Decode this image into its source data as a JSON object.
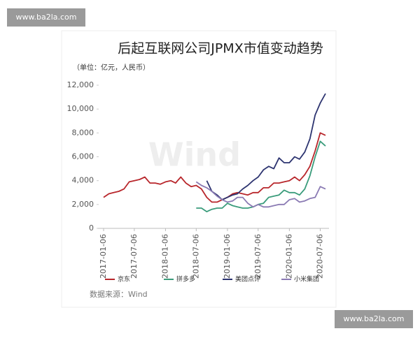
{
  "watermarks": [
    "www.ba2la.com",
    "www.ba2la.com"
  ],
  "chart_data": {
    "type": "line",
    "title": "后起互联网公司JPMX市值变动趋势",
    "subtitle": "（单位：亿元，人民币）",
    "source": "数据来源：Wind",
    "background_logo": "Wind",
    "x": [
      "2017-01-06",
      "2017-02-06",
      "2017-03-06",
      "2017-04-06",
      "2017-05-06",
      "2017-06-06",
      "2017-07-06",
      "2017-08-06",
      "2017-09-06",
      "2017-10-06",
      "2017-11-06",
      "2017-12-06",
      "2018-01-06",
      "2018-02-06",
      "2018-03-06",
      "2018-04-06",
      "2018-05-06",
      "2018-06-06",
      "2018-07-06",
      "2018-08-06",
      "2018-09-06",
      "2018-10-06",
      "2018-11-06",
      "2018-12-06",
      "2019-01-06",
      "2019-02-06",
      "2019-03-06",
      "2019-04-06",
      "2019-05-06",
      "2019-06-06",
      "2019-07-06",
      "2019-08-06",
      "2019-09-06",
      "2019-10-06",
      "2019-11-06",
      "2019-12-06",
      "2020-01-06",
      "2020-02-06",
      "2020-03-06",
      "2020-04-06",
      "2020-05-06",
      "2020-06-06",
      "2020-07-06",
      "2020-08-06"
    ],
    "xlim": [
      "2017-01-06",
      "2020-08-06"
    ],
    "xticks": [
      "2017-01-06",
      "2017-07-06",
      "2018-01-06",
      "2018-07-06",
      "2019-01-06",
      "2019-07-06",
      "2020-01-06",
      "2020-07-06"
    ],
    "ylim": [
      0,
      12000
    ],
    "yticks": [
      0,
      {
        "value": 2000,
        "label": "2,000"
      },
      {
        "value": 4000,
        "label": "4,000"
      },
      {
        "value": 6000,
        "label": "6,000"
      },
      {
        "value": 8000,
        "label": "8,000"
      },
      {
        "value": 10000,
        "label": "10,000"
      },
      {
        "value": 12000,
        "label": "12,000"
      }
    ],
    "legend": "bottom",
    "series": [
      {
        "name": "京东",
        "color": "#b8262b",
        "values": [
          2600,
          2900,
          3000,
          3100,
          3300,
          3900,
          4000,
          4100,
          4300,
          3800,
          3800,
          3700,
          3900,
          4000,
          3800,
          4300,
          3800,
          3500,
          3600,
          3300,
          2600,
          2200,
          2200,
          2400,
          2600,
          2900,
          3000,
          2900,
          2800,
          3000,
          3000,
          3400,
          3400,
          3800,
          3800,
          3900,
          4000,
          4300,
          4000,
          4500,
          5200,
          6500,
          8000,
          7800
        ]
      },
      {
        "name": "拼多多",
        "color": "#3a9c7b",
        "values": [
          null,
          null,
          null,
          null,
          null,
          null,
          null,
          null,
          null,
          null,
          null,
          null,
          null,
          null,
          null,
          null,
          null,
          null,
          1700,
          1700,
          1400,
          1600,
          1700,
          1700,
          2100,
          1900,
          1800,
          1700,
          1700,
          1800,
          2000,
          2100,
          2600,
          2700,
          2800,
          3200,
          3000,
          3000,
          2800,
          3300,
          4400,
          6000,
          7300,
          6900
        ]
      },
      {
        "name": "美团点评",
        "color": "#2d3470",
        "values": [
          null,
          null,
          null,
          null,
          null,
          null,
          null,
          null,
          null,
          null,
          null,
          null,
          null,
          null,
          null,
          null,
          null,
          null,
          null,
          null,
          4000,
          3100,
          2800,
          2400,
          2600,
          2800,
          2900,
          3300,
          3600,
          4000,
          4300,
          4900,
          5200,
          5000,
          5900,
          5500,
          5500,
          6000,
          5800,
          6400,
          7500,
          9500,
          10500,
          11300
        ]
      },
      {
        "name": "小米集团",
        "color": "#8a7ab3",
        "values": [
          null,
          null,
          null,
          null,
          null,
          null,
          null,
          null,
          null,
          null,
          null,
          null,
          null,
          null,
          null,
          null,
          null,
          null,
          3900,
          3600,
          3400,
          3100,
          2700,
          2400,
          2200,
          2300,
          2600,
          2600,
          2100,
          1800,
          2000,
          1800,
          1800,
          1900,
          2000,
          2000,
          2400,
          2500,
          2200,
          2300,
          2500,
          2600,
          3500,
          3300
        ]
      }
    ]
  }
}
